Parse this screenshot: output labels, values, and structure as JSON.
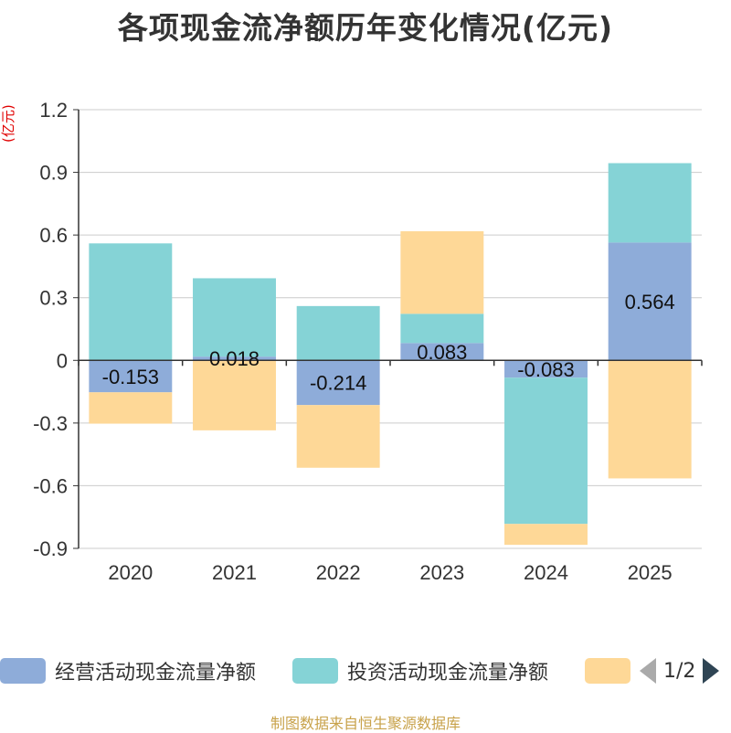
{
  "title": "各项现金流净额历年变化情况(亿元)",
  "unit_label": "(亿元)",
  "footer": "制图数据来自恒生聚源数据库",
  "legend": {
    "items": [
      {
        "label": "经营活动现金流量净额",
        "color": "#8eacd9"
      },
      {
        "label": "投资活动现金流量净额",
        "color": "#85d3d6"
      },
      {
        "label": "",
        "color": "#fed897"
      }
    ],
    "page_text": "1/2"
  },
  "chart_data": {
    "type": "bar",
    "stacked": true,
    "categories": [
      "2020",
      "2021",
      "2022",
      "2023",
      "2024",
      "2025"
    ],
    "ylim": [
      -0.9,
      1.2
    ],
    "yticks": [
      1.2,
      0.9,
      0.6,
      0.3,
      0,
      -0.3,
      -0.6,
      -0.9
    ],
    "ytick_labels": [
      "1.2",
      "0.9",
      "0.6",
      "0.3",
      "0",
      "-0.3",
      "-0.6",
      "-0.9"
    ],
    "series": [
      {
        "name": "经营活动现金流量净额",
        "color": "#8eacd9",
        "values": [
          -0.153,
          0.018,
          -0.214,
          0.083,
          -0.083,
          0.564
        ],
        "labels": [
          "-0.153",
          "0.018",
          "-0.214",
          "0.083",
          "-0.083",
          "0.564"
        ]
      },
      {
        "name": "投资活动现金流量净额",
        "color": "#85d3d6",
        "values": [
          0.56,
          0.375,
          0.26,
          0.14,
          -0.7,
          0.38
        ]
      },
      {
        "name": "",
        "color": "#fed897",
        "values": [
          -0.15,
          -0.335,
          -0.3,
          0.395,
          -0.1,
          -0.565
        ]
      }
    ]
  }
}
